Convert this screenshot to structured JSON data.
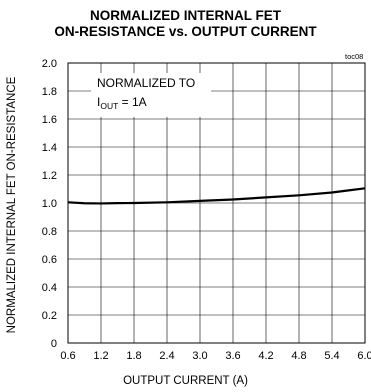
{
  "chart_data": {
    "type": "line",
    "title_line1": "NORMALIZED INTERNAL FET",
    "title_line2": "ON-RESISTANCE vs. OUTPUT CURRENT",
    "xlabel": "OUTPUT CURRENT  (A)",
    "ylabel": "NORMALIZED INTERNAL FET ON-RESISTANCE",
    "figure_id": "toc08",
    "annotation": {
      "line1": "NORMALIZED TO",
      "line2_prefix": "I",
      "line2_sub": "OUT",
      "line2_suffix": " = 1A"
    },
    "xlim": [
      0.6,
      6.0
    ],
    "ylim": [
      0.0,
      2.0
    ],
    "xticks": [
      "0.6",
      "1.2",
      "1.8",
      "2.4",
      "3.0",
      "3.6",
      "4.2",
      "4.8",
      "5.4",
      "6.0"
    ],
    "yticks": [
      "0",
      "0.2",
      "0.4",
      "0.6",
      "0.8",
      "1.0",
      "1.2",
      "1.4",
      "1.6",
      "1.8",
      "2.0"
    ],
    "grid": true,
    "series": [
      {
        "x": [
          0.6,
          0.9,
          1.2,
          1.5,
          1.8,
          2.4,
          3.0,
          3.6,
          4.2,
          4.8,
          5.4,
          5.7,
          6.0
        ],
        "y": [
          1.005,
          0.998,
          0.997,
          0.999,
          1.0,
          1.005,
          1.015,
          1.025,
          1.04,
          1.055,
          1.075,
          1.09,
          1.105
        ]
      }
    ]
  }
}
